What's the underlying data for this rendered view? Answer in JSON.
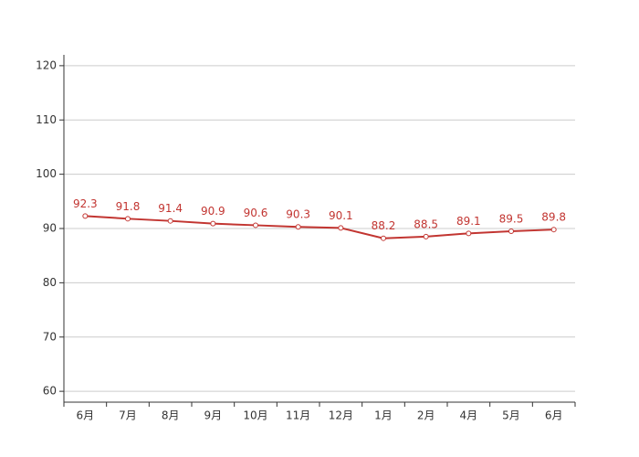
{
  "chart_data": {
    "type": "line",
    "categories": [
      "6月",
      "7月",
      "8月",
      "9月",
      "10月",
      "11月",
      "12月",
      "1月",
      "2月",
      "4月",
      "5月",
      "6月"
    ],
    "series": [
      {
        "color": "#c23531",
        "values": [
          92.3,
          91.8,
          91.4,
          90.9,
          90.6,
          90.3,
          90.1,
          88.2,
          88.5,
          89.1,
          89.5,
          89.8
        ]
      }
    ],
    "ylim": [
      58,
      122
    ],
    "yticks": [
      60,
      70,
      80,
      90,
      100,
      110,
      120
    ],
    "grid": true
  }
}
